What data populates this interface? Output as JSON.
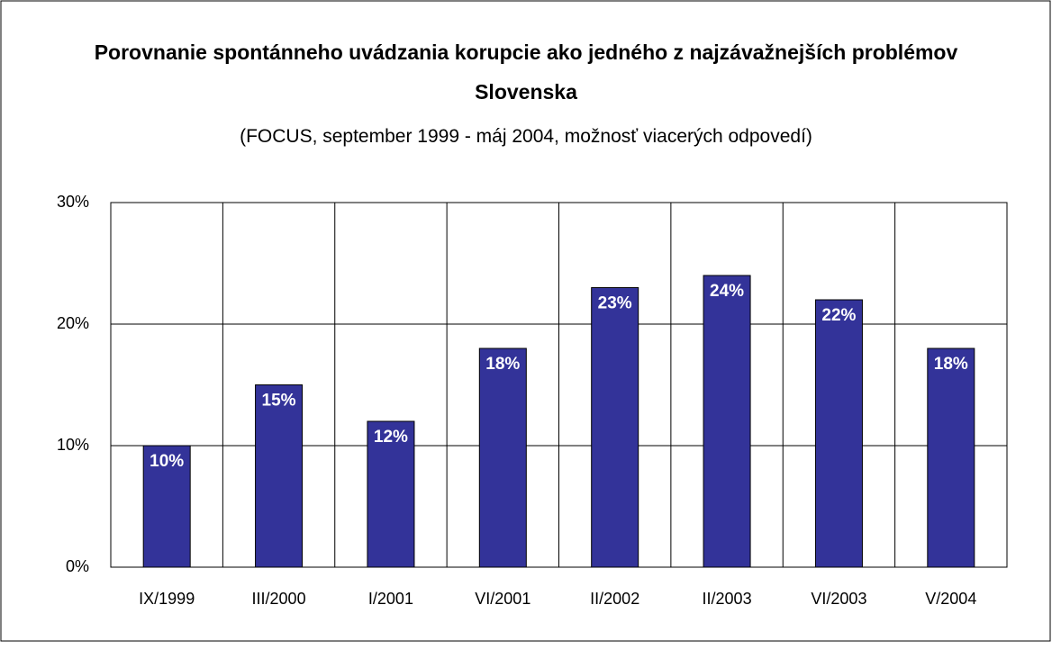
{
  "chart_data": {
    "type": "bar",
    "title": "Porovnanie spontánneho uvádzania korupcie ako jedného z najzávažnejších problémov Slovenska",
    "subtitle": "(FOCUS, september 1999 - máj 2004, možnosť viacerých odpovedí)",
    "categories": [
      "IX/1999",
      "III/2000",
      "I/2001",
      "VI/2001",
      "II/2002",
      "II/2003",
      "VI/2003",
      "V/2004"
    ],
    "values": [
      10,
      15,
      12,
      18,
      23,
      24,
      22,
      18
    ],
    "value_labels": [
      "10%",
      "15%",
      "12%",
      "18%",
      "23%",
      "24%",
      "22%",
      "18%"
    ],
    "color": "#333399",
    "ylim": [
      0,
      30
    ],
    "yticks": [
      {
        "value": 0,
        "label": "0%"
      },
      {
        "value": 10,
        "label": "10%"
      },
      {
        "value": 20,
        "label": "20%"
      },
      {
        "value": 30,
        "label": "30%"
      }
    ],
    "grid": true
  }
}
